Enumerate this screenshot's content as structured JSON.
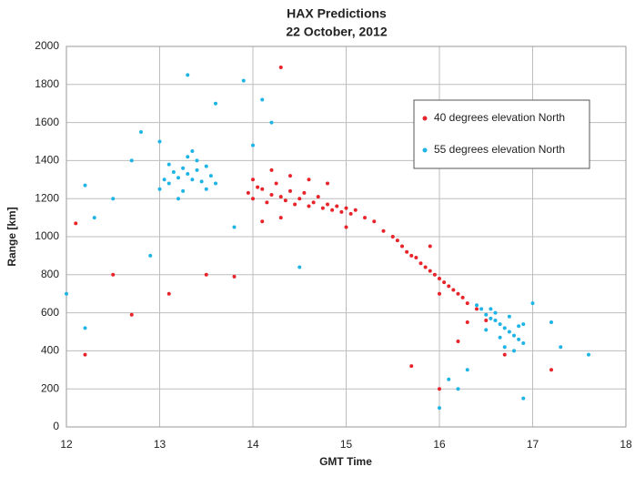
{
  "chart_data": {
    "type": "scatter",
    "title": "HAX Predictions",
    "subtitle": "22 October, 2012",
    "x_label": "GMT Time",
    "y_label": "Range [km]",
    "xlim": [
      12,
      18
    ],
    "xticks": [
      12,
      13,
      14,
      15,
      16,
      17,
      18
    ],
    "ylim": [
      0,
      2000
    ],
    "yticks": [
      0,
      200,
      400,
      600,
      800,
      1000,
      1200,
      1400,
      1600,
      1800,
      2000
    ],
    "grid": true,
    "legend": "upper-right",
    "series": [
      {
        "name": "40 degrees elevation North",
        "color": "#e8242b",
        "x": [
          13.95,
          14.0,
          14.05,
          14.1,
          14.15,
          14.2,
          14.25,
          14.3,
          14.35,
          14.4,
          14.45,
          14.5,
          14.55,
          14.6,
          14.65,
          14.7,
          14.75,
          14.8,
          14.85,
          14.9,
          14.95,
          15.0,
          15.05,
          15.1,
          15.2,
          15.3,
          15.4,
          15.5,
          15.55,
          15.6,
          15.65,
          15.7,
          15.75,
          15.8,
          15.85,
          15.9,
          15.95,
          16.0,
          16.05,
          16.1,
          16.15,
          16.2,
          16.25,
          16.3,
          16.4,
          16.5,
          14.2,
          14.4,
          14.6,
          14.3,
          14.1,
          14.8,
          15.0,
          15.9,
          16.0,
          16.3,
          12.1,
          12.2,
          12.5,
          12.7,
          13.1,
          13.5,
          13.8,
          14.3,
          16.2,
          17.2,
          15.7,
          16.7,
          16.0,
          14.0
        ],
        "values": [
          1230,
          1200,
          1260,
          1250,
          1180,
          1220,
          1280,
          1210,
          1190,
          1240,
          1170,
          1200,
          1230,
          1160,
          1180,
          1210,
          1150,
          1170,
          1140,
          1160,
          1130,
          1150,
          1120,
          1140,
          1100,
          1080,
          1030,
          1000,
          980,
          950,
          920,
          900,
          890,
          860,
          840,
          820,
          800,
          780,
          760,
          740,
          720,
          700,
          680,
          650,
          620,
          560,
          1350,
          1320,
          1300,
          1100,
          1080,
          1280,
          1050,
          950,
          700,
          550,
          1070,
          380,
          800,
          590,
          700,
          800,
          790,
          1890,
          450,
          300,
          320,
          380,
          200,
          1300
        ]
      },
      {
        "name": "55 degrees elevation North",
        "color": "#1fb4e6",
        "x": [
          13.0,
          13.05,
          13.1,
          13.15,
          13.2,
          13.25,
          13.3,
          13.35,
          13.4,
          13.45,
          13.5,
          13.55,
          13.6,
          13.2,
          13.3,
          13.4,
          13.1,
          13.5,
          13.25,
          13.35,
          16.4,
          16.45,
          16.5,
          16.55,
          16.6,
          16.65,
          16.7,
          16.75,
          16.8,
          16.85,
          16.9,
          16.6,
          16.7,
          16.8,
          16.5,
          16.9,
          16.75,
          16.65,
          16.55,
          16.85,
          12.0,
          12.2,
          12.3,
          12.5,
          12.7,
          12.9,
          13.0,
          13.3,
          13.6,
          13.9,
          14.1,
          14.0,
          14.5,
          12.8,
          13.8,
          12.2,
          16.1,
          16.2,
          17.0,
          17.3,
          17.6,
          16.9,
          16.3,
          16.0,
          17.2,
          14.2
        ],
        "values": [
          1250,
          1300,
          1280,
          1340,
          1310,
          1360,
          1330,
          1300,
          1350,
          1290,
          1370,
          1320,
          1280,
          1200,
          1420,
          1400,
          1380,
          1250,
          1240,
          1450,
          640,
          620,
          590,
          570,
          560,
          540,
          520,
          500,
          480,
          460,
          440,
          600,
          420,
          400,
          510,
          540,
          580,
          470,
          620,
          530,
          700,
          1270,
          1100,
          1200,
          1400,
          900,
          1500,
          1850,
          1700,
          1820,
          1720,
          1480,
          840,
          1550,
          1050,
          520,
          250,
          200,
          650,
          420,
          380,
          150,
          300,
          100,
          550,
          1600
        ]
      }
    ]
  }
}
